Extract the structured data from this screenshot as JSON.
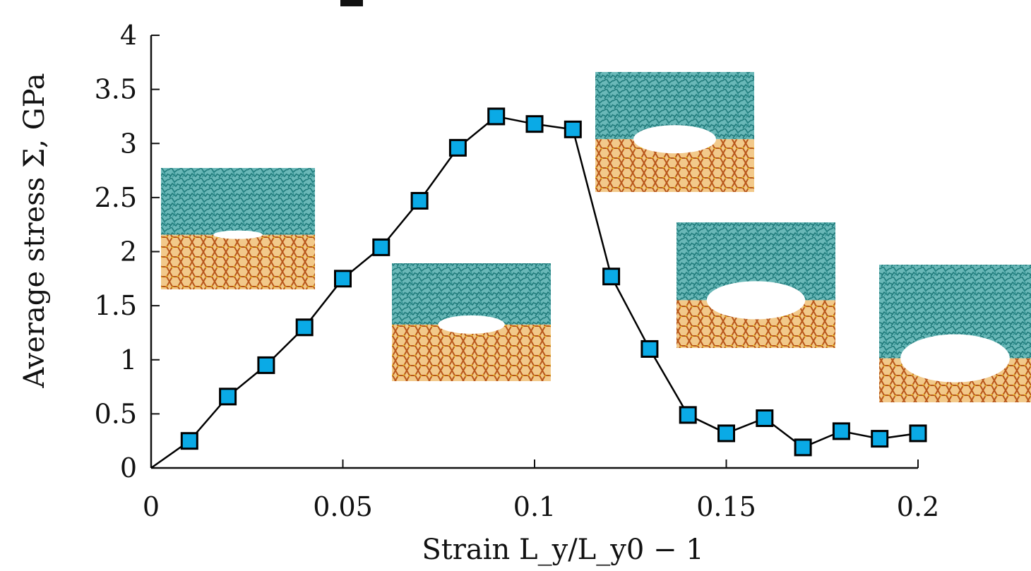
{
  "chart_data": {
    "type": "line",
    "title": "",
    "xlabel": "Strain L_y/L_y0 − 1",
    "ylabel": "Average stress Σ, GPa",
    "xlim": [
      0,
      0.2
    ],
    "ylim": [
      0,
      4
    ],
    "x_ticks": [
      "0",
      "0.05",
      "0.1",
      "0.15",
      "0.2"
    ],
    "y_ticks": [
      "0",
      "0.5",
      "1",
      "1.5",
      "2",
      "2.5",
      "3",
      "3.5",
      "4"
    ],
    "grid": false,
    "legend": "none",
    "series": [
      {
        "x": [
          0,
          0.01,
          0.02,
          0.03,
          0.04,
          0.05,
          0.06,
          0.07,
          0.08,
          0.09,
          0.1,
          0.11,
          0.12,
          0.13,
          0.14,
          0.15,
          0.16,
          0.17,
          0.18,
          0.19,
          0.2
        ],
        "y": [
          0,
          0.25,
          0.66,
          0.95,
          1.3,
          1.75,
          2.04,
          2.47,
          2.96,
          3.25,
          3.18,
          3.13,
          1.77,
          1.1,
          0.49,
          0.32,
          0.46,
          0.19,
          0.34,
          0.27,
          0.32
        ],
        "marker": "square",
        "marker_start_index": 1,
        "line_color": "#000000",
        "marker_color": "#0aaae6"
      }
    ],
    "insets": [
      {
        "name": "snapshot-1",
        "description": "molecular structure snapshot"
      },
      {
        "name": "snapshot-2",
        "description": "molecular structure snapshot"
      },
      {
        "name": "snapshot-3",
        "description": "molecular structure snapshot"
      },
      {
        "name": "snapshot-4",
        "description": "molecular structure snapshot"
      },
      {
        "name": "snapshot-5",
        "description": "molecular structure snapshot"
      }
    ]
  },
  "colors": {
    "marker_fill": "#0aaae6",
    "line": "#000000",
    "snapshot_polymer": "#3a9a9a",
    "snapshot_crystal_a": "#b85a14",
    "snapshot_crystal_b": "#e0a018"
  }
}
